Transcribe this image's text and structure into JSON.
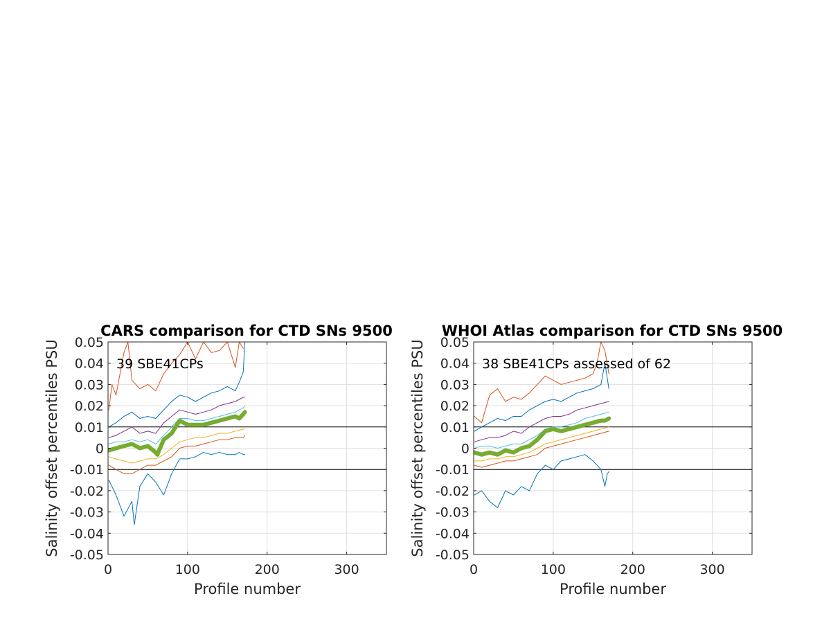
{
  "figure": {
    "background": "#ffffff"
  },
  "chart_data": [
    {
      "type": "line",
      "title": "CARS comparison for CTD SNs 9500",
      "xlabel": "Profile number",
      "ylabel": "Salinity offset percentiles PSU",
      "annotation": "39 SBE41CPs",
      "xlim": [
        0,
        350
      ],
      "ylim": [
        -0.05,
        0.05
      ],
      "xticks": [
        0,
        100,
        200,
        300
      ],
      "yticks": [
        -0.05,
        -0.04,
        -0.03,
        -0.02,
        -0.01,
        0,
        0.01,
        0.02,
        0.03,
        0.04,
        0.05
      ],
      "ytick_labels": [
        "-0.05",
        "-0.04",
        "-0.03",
        "-0.02",
        "-0.01",
        "0",
        "0.01",
        "0.02",
        "0.03",
        "0.04",
        "0.05"
      ],
      "grid": true,
      "reference_lines": [
        0.01,
        -0.01
      ],
      "series": [
        {
          "color": "#0072BD",
          "width": 1,
          "x": [
            1,
            10,
            20,
            30,
            33,
            40,
            50,
            60,
            70,
            80,
            90,
            100,
            110,
            120,
            130,
            140,
            150,
            160,
            165,
            170,
            172
          ],
          "values": [
            -0.015,
            -0.022,
            -0.032,
            -0.025,
            -0.036,
            -0.018,
            -0.012,
            -0.016,
            -0.022,
            -0.012,
            -0.005,
            -0.005,
            -0.004,
            -0.002,
            -0.003,
            -0.002,
            -0.003,
            -0.003,
            -0.002,
            -0.003,
            -0.003
          ]
        },
        {
          "color": "#D95319",
          "width": 1,
          "x": [
            1,
            10,
            20,
            30,
            40,
            50,
            60,
            70,
            80,
            90,
            100,
            110,
            120,
            130,
            140,
            150,
            160,
            170,
            172
          ],
          "values": [
            -0.008,
            -0.01,
            -0.012,
            -0.012,
            -0.01,
            -0.008,
            -0.008,
            -0.006,
            -0.004,
            0.0,
            0.001,
            0.001,
            0.002,
            0.003,
            0.004,
            0.004,
            0.005,
            0.005,
            0.006
          ]
        },
        {
          "color": "#EDB120",
          "width": 1,
          "x": [
            1,
            10,
            20,
            30,
            40,
            50,
            60,
            70,
            80,
            90,
            100,
            110,
            120,
            130,
            140,
            150,
            160,
            170,
            172
          ],
          "values": [
            -0.004,
            -0.005,
            -0.006,
            -0.007,
            -0.006,
            -0.005,
            -0.005,
            -0.003,
            0.0,
            0.003,
            0.004,
            0.005,
            0.005,
            0.006,
            0.007,
            0.007,
            0.008,
            0.009,
            0.009
          ]
        },
        {
          "color": "#4DBEEE",
          "width": 1,
          "x": [
            1,
            10,
            20,
            30,
            40,
            50,
            60,
            70,
            80,
            90,
            100,
            110,
            120,
            130,
            140,
            150,
            160,
            170,
            172
          ],
          "values": [
            0.002,
            0.003,
            0.003,
            0.004,
            0.003,
            0.004,
            0.002,
            0.006,
            0.01,
            0.014,
            0.014,
            0.013,
            0.013,
            0.014,
            0.015,
            0.016,
            0.017,
            0.019,
            0.02
          ]
        },
        {
          "color": "#7E2F8E",
          "width": 1,
          "x": [
            1,
            10,
            20,
            30,
            40,
            50,
            60,
            70,
            80,
            90,
            100,
            110,
            120,
            130,
            140,
            150,
            160,
            170,
            172
          ],
          "values": [
            0.005,
            0.006,
            0.008,
            0.01,
            0.007,
            0.008,
            0.007,
            0.012,
            0.015,
            0.018,
            0.017,
            0.016,
            0.017,
            0.018,
            0.02,
            0.021,
            0.022,
            0.024,
            0.024
          ]
        },
        {
          "color": "#0072BD",
          "width": 1,
          "x": [
            1,
            10,
            20,
            30,
            40,
            50,
            60,
            70,
            80,
            90,
            100,
            110,
            120,
            130,
            140,
            150,
            160,
            165,
            170,
            172
          ],
          "values": [
            0.01,
            0.012,
            0.015,
            0.017,
            0.014,
            0.015,
            0.014,
            0.018,
            0.022,
            0.025,
            0.024,
            0.022,
            0.024,
            0.026,
            0.027,
            0.029,
            0.027,
            0.031,
            0.036,
            0.05
          ]
        },
        {
          "color": "#D95319",
          "width": 1,
          "x": [
            1,
            5,
            10,
            20,
            25,
            30,
            40,
            50,
            60,
            70,
            80,
            90,
            100,
            110,
            120,
            130,
            140,
            150,
            160,
            165,
            170
          ],
          "values": [
            0.018,
            0.03,
            0.025,
            0.045,
            0.05,
            0.032,
            0.028,
            0.03,
            0.027,
            0.035,
            0.04,
            0.044,
            0.05,
            0.042,
            0.05,
            0.045,
            0.046,
            0.05,
            0.038,
            0.05,
            0.047
          ]
        },
        {
          "color": "#77AC30",
          "width": 6,
          "x": [
            1,
            10,
            20,
            30,
            40,
            50,
            60,
            62,
            70,
            80,
            90,
            100,
            110,
            120,
            130,
            140,
            150,
            160,
            165,
            170,
            172
          ],
          "values": [
            -0.001,
            0.0,
            0.001,
            0.002,
            0.0,
            0.001,
            -0.002,
            -0.003,
            0.004,
            0.007,
            0.013,
            0.011,
            0.011,
            0.011,
            0.012,
            0.013,
            0.014,
            0.015,
            0.014,
            0.016,
            0.017
          ]
        }
      ]
    },
    {
      "type": "line",
      "title": "WHOI Atlas comparison for CTD SNs 9500",
      "xlabel": "Profile number",
      "ylabel": "Salinity offset percentiles PSU",
      "annotation": "38 SBE41CPs assessed of 62",
      "xlim": [
        0,
        350
      ],
      "ylim": [
        -0.05,
        0.05
      ],
      "xticks": [
        0,
        100,
        200,
        300
      ],
      "yticks": [
        -0.05,
        -0.04,
        -0.03,
        -0.02,
        -0.01,
        0,
        0.01,
        0.02,
        0.03,
        0.04,
        0.05
      ],
      "ytick_labels": [
        "-0.05",
        "-0.04",
        "-0.03",
        "-0.02",
        "-0.01",
        "0",
        "0.01",
        "0.02",
        "0.03",
        "0.04",
        "0.05"
      ],
      "grid": true,
      "reference_lines": [
        0.01,
        -0.01
      ],
      "series": [
        {
          "color": "#0072BD",
          "width": 1,
          "x": [
            1,
            10,
            20,
            30,
            40,
            50,
            60,
            70,
            80,
            90,
            100,
            110,
            120,
            130,
            140,
            150,
            160,
            165,
            168,
            170
          ],
          "values": [
            -0.022,
            -0.02,
            -0.025,
            -0.028,
            -0.02,
            -0.022,
            -0.018,
            -0.02,
            -0.012,
            -0.008,
            -0.01,
            -0.006,
            -0.005,
            -0.004,
            -0.003,
            -0.006,
            -0.01,
            -0.018,
            -0.012,
            -0.011
          ]
        },
        {
          "color": "#D95319",
          "width": 1,
          "x": [
            1,
            10,
            20,
            30,
            40,
            50,
            60,
            70,
            80,
            90,
            100,
            110,
            120,
            130,
            140,
            150,
            160,
            170
          ],
          "values": [
            -0.008,
            -0.009,
            -0.008,
            -0.007,
            -0.006,
            -0.006,
            -0.005,
            -0.004,
            -0.003,
            0.0,
            0.001,
            0.002,
            0.003,
            0.004,
            0.005,
            0.006,
            0.007,
            0.008
          ]
        },
        {
          "color": "#EDB120",
          "width": 1,
          "x": [
            1,
            10,
            20,
            30,
            40,
            50,
            60,
            70,
            80,
            90,
            100,
            110,
            120,
            130,
            140,
            150,
            160,
            170
          ],
          "values": [
            -0.006,
            -0.006,
            -0.005,
            -0.005,
            -0.004,
            -0.004,
            -0.003,
            -0.002,
            0.0,
            0.002,
            0.003,
            0.004,
            0.005,
            0.006,
            0.007,
            0.008,
            0.009,
            0.01
          ]
        },
        {
          "color": "#4DBEEE",
          "width": 1,
          "x": [
            1,
            10,
            20,
            30,
            40,
            50,
            60,
            70,
            80,
            90,
            100,
            110,
            120,
            130,
            140,
            150,
            160,
            170
          ],
          "values": [
            0.0,
            0.001,
            0.001,
            0.0,
            0.001,
            0.002,
            0.002,
            0.004,
            0.006,
            0.009,
            0.01,
            0.01,
            0.011,
            0.012,
            0.014,
            0.015,
            0.016,
            0.017
          ]
        },
        {
          "color": "#7E2F8E",
          "width": 1,
          "x": [
            1,
            10,
            20,
            30,
            40,
            50,
            60,
            70,
            80,
            90,
            100,
            110,
            120,
            130,
            140,
            150,
            160,
            170
          ],
          "values": [
            0.003,
            0.004,
            0.005,
            0.005,
            0.006,
            0.008,
            0.007,
            0.01,
            0.012,
            0.014,
            0.015,
            0.015,
            0.016,
            0.018,
            0.019,
            0.02,
            0.021,
            0.022
          ]
        },
        {
          "color": "#0072BD",
          "width": 1,
          "x": [
            1,
            10,
            20,
            30,
            40,
            50,
            60,
            70,
            80,
            90,
            100,
            110,
            120,
            130,
            140,
            150,
            160,
            165,
            170
          ],
          "values": [
            0.008,
            0.01,
            0.012,
            0.014,
            0.013,
            0.015,
            0.015,
            0.018,
            0.02,
            0.022,
            0.023,
            0.022,
            0.024,
            0.026,
            0.027,
            0.028,
            0.03,
            0.04,
            0.028
          ]
        },
        {
          "color": "#D95319",
          "width": 1,
          "x": [
            1,
            10,
            20,
            30,
            40,
            50,
            60,
            70,
            80,
            90,
            100,
            110,
            120,
            130,
            140,
            150,
            155,
            160,
            165,
            170
          ],
          "values": [
            0.015,
            0.012,
            0.025,
            0.028,
            0.022,
            0.024,
            0.023,
            0.026,
            0.03,
            0.034,
            0.032,
            0.03,
            0.031,
            0.032,
            0.033,
            0.035,
            0.04,
            0.05,
            0.046,
            0.035
          ]
        },
        {
          "color": "#77AC30",
          "width": 6,
          "x": [
            1,
            10,
            20,
            30,
            40,
            50,
            60,
            70,
            80,
            90,
            100,
            110,
            120,
            130,
            140,
            150,
            160,
            165,
            170
          ],
          "values": [
            -0.002,
            -0.003,
            -0.002,
            -0.003,
            -0.001,
            -0.002,
            0.0,
            0.001,
            0.004,
            0.008,
            0.009,
            0.008,
            0.009,
            0.01,
            0.011,
            0.012,
            0.013,
            0.013,
            0.014
          ]
        }
      ]
    }
  ]
}
